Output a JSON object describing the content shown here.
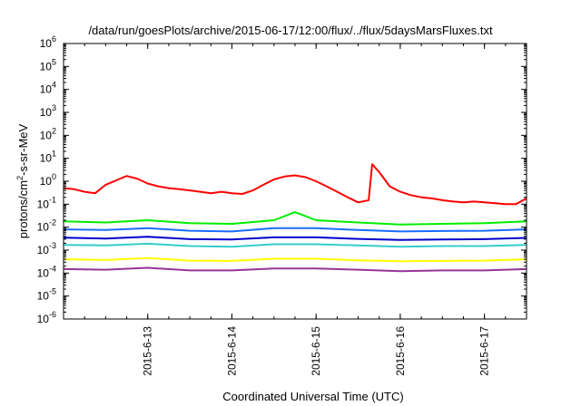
{
  "chart_data": {
    "type": "line",
    "title": "/data/run/goesPlots/archive/2015-06-17/12:00/flux/../flux/5daysMarsFluxes.txt",
    "xlabel": "Coordinated Universal Time (UTC)",
    "ylabel_parts": [
      "protons/cm",
      "2",
      "-s-sr-MeV"
    ],
    "yscale": "log",
    "ylim": [
      1e-06,
      1000000
    ],
    "y_ticks": [
      {
        "base": "10",
        "exp": "-6"
      },
      {
        "base": "10",
        "exp": "-5"
      },
      {
        "base": "10",
        "exp": "-4"
      },
      {
        "base": "10",
        "exp": "-3"
      },
      {
        "base": "10",
        "exp": "-2"
      },
      {
        "base": "10",
        "exp": "-1"
      },
      {
        "base": "10",
        "exp": "0"
      },
      {
        "base": "10",
        "exp": "1"
      },
      {
        "base": "10",
        "exp": "2"
      },
      {
        "base": "10",
        "exp": "3"
      },
      {
        "base": "10",
        "exp": "4"
      },
      {
        "base": "10",
        "exp": "5"
      },
      {
        "base": "10",
        "exp": "6"
      }
    ],
    "xlim_days": [
      "2015-06-12 00:00",
      "2015-06-17 12:00"
    ],
    "x_ticks": [
      "2015-6-13",
      "2015-6-14",
      "2015-6-15",
      "2015-6-16",
      "2015-6-17"
    ],
    "grid": false,
    "series": [
      {
        "color": "#ff0000",
        "x": [
          "2015-06-12 00:00",
          "2015-06-12 03:00",
          "2015-06-12 06:00",
          "2015-06-12 09:00",
          "2015-06-12 12:00",
          "2015-06-12 15:00",
          "2015-06-12 18:00",
          "2015-06-12 21:00",
          "2015-06-13 00:00",
          "2015-06-13 03:00",
          "2015-06-13 06:00",
          "2015-06-13 09:00",
          "2015-06-13 12:00",
          "2015-06-13 15:00",
          "2015-06-13 18:00",
          "2015-06-13 21:00",
          "2015-06-14 00:00",
          "2015-06-14 03:00",
          "2015-06-14 06:00",
          "2015-06-14 09:00",
          "2015-06-14 12:00",
          "2015-06-14 15:00",
          "2015-06-14 18:00",
          "2015-06-14 21:00",
          "2015-06-15 00:00",
          "2015-06-15 03:00",
          "2015-06-15 06:00",
          "2015-06-15 09:00",
          "2015-06-15 12:00",
          "2015-06-15 15:00",
          "2015-06-15 16:00",
          "2015-06-15 18:00",
          "2015-06-15 21:00",
          "2015-06-16 00:00",
          "2015-06-16 03:00",
          "2015-06-16 06:00",
          "2015-06-16 09:00",
          "2015-06-16 12:00",
          "2015-06-16 15:00",
          "2015-06-16 18:00",
          "2015-06-16 21:00",
          "2015-06-17 00:00",
          "2015-06-17 03:00",
          "2015-06-17 06:00",
          "2015-06-17 09:00",
          "2015-06-17 12:00"
        ],
        "values": [
          0.5,
          0.45,
          0.35,
          0.3,
          0.7,
          1.1,
          1.7,
          1.3,
          0.8,
          0.6,
          0.5,
          0.45,
          0.4,
          0.35,
          0.3,
          0.35,
          0.3,
          0.28,
          0.4,
          0.7,
          1.2,
          1.6,
          1.8,
          1.5,
          1.0,
          0.6,
          0.35,
          0.2,
          0.12,
          0.15,
          5.5,
          2.5,
          0.6,
          0.35,
          0.25,
          0.2,
          0.18,
          0.15,
          0.13,
          0.12,
          0.13,
          0.12,
          0.11,
          0.1,
          0.1,
          0.18
        ]
      },
      {
        "color": "#00ee00",
        "x": [
          "2015-06-12 00:00",
          "2015-06-12 12:00",
          "2015-06-13 00:00",
          "2015-06-13 12:00",
          "2015-06-14 00:00",
          "2015-06-14 12:00",
          "2015-06-14 18:00",
          "2015-06-15 00:00",
          "2015-06-15 12:00",
          "2015-06-16 00:00",
          "2015-06-16 12:00",
          "2015-06-17 00:00",
          "2015-06-17 12:00"
        ],
        "values": [
          0.018,
          0.016,
          0.02,
          0.015,
          0.014,
          0.02,
          0.045,
          0.02,
          0.016,
          0.013,
          0.014,
          0.015,
          0.018
        ]
      },
      {
        "color": "#1a6cff",
        "x": [
          "2015-06-12 00:00",
          "2015-06-12 12:00",
          "2015-06-13 00:00",
          "2015-06-13 12:00",
          "2015-06-14 00:00",
          "2015-06-14 12:00",
          "2015-06-15 00:00",
          "2015-06-15 12:00",
          "2015-06-16 00:00",
          "2015-06-16 12:00",
          "2015-06-17 00:00",
          "2015-06-17 12:00"
        ],
        "values": [
          0.008,
          0.0075,
          0.009,
          0.007,
          0.0065,
          0.009,
          0.009,
          0.0075,
          0.0065,
          0.0068,
          0.007,
          0.008
        ]
      },
      {
        "color": "#0000cc",
        "x": [
          "2015-06-12 00:00",
          "2015-06-12 12:00",
          "2015-06-13 00:00",
          "2015-06-13 12:00",
          "2015-06-14 00:00",
          "2015-06-14 12:00",
          "2015-06-15 00:00",
          "2015-06-15 12:00",
          "2015-06-16 00:00",
          "2015-06-16 12:00",
          "2015-06-17 00:00",
          "2015-06-17 12:00"
        ],
        "values": [
          0.0035,
          0.0032,
          0.0038,
          0.003,
          0.0029,
          0.0036,
          0.0036,
          0.0031,
          0.0028,
          0.0029,
          0.003,
          0.0034
        ]
      },
      {
        "color": "#33cccc",
        "x": [
          "2015-06-12 00:00",
          "2015-06-12 12:00",
          "2015-06-13 00:00",
          "2015-06-13 12:00",
          "2015-06-14 00:00",
          "2015-06-14 12:00",
          "2015-06-15 00:00",
          "2015-06-15 12:00",
          "2015-06-16 00:00",
          "2015-06-16 12:00",
          "2015-06-17 00:00",
          "2015-06-17 12:00"
        ],
        "values": [
          0.0017,
          0.0016,
          0.0019,
          0.0015,
          0.0014,
          0.0018,
          0.0018,
          0.0016,
          0.0014,
          0.0015,
          0.0015,
          0.0017
        ]
      },
      {
        "color": "#ffff00",
        "x": [
          "2015-06-12 00:00",
          "2015-06-12 12:00",
          "2015-06-13 00:00",
          "2015-06-13 12:00",
          "2015-06-14 00:00",
          "2015-06-14 12:00",
          "2015-06-15 00:00",
          "2015-06-15 12:00",
          "2015-06-16 00:00",
          "2015-06-16 12:00",
          "2015-06-17 00:00",
          "2015-06-17 12:00"
        ],
        "values": [
          0.0004,
          0.00037,
          0.00045,
          0.00035,
          0.00034,
          0.00042,
          0.00042,
          0.00036,
          0.00033,
          0.00034,
          0.00035,
          0.0004
        ]
      },
      {
        "color": "#993399",
        "x": [
          "2015-06-12 00:00",
          "2015-06-12 12:00",
          "2015-06-13 00:00",
          "2015-06-13 12:00",
          "2015-06-14 00:00",
          "2015-06-14 12:00",
          "2015-06-15 00:00",
          "2015-06-15 12:00",
          "2015-06-16 00:00",
          "2015-06-16 12:00",
          "2015-06-17 00:00",
          "2015-06-17 12:00"
        ],
        "values": [
          0.00015,
          0.00014,
          0.00017,
          0.00013,
          0.00013,
          0.00016,
          0.00016,
          0.00014,
          0.00012,
          0.00013,
          0.00013,
          0.00015
        ]
      }
    ]
  }
}
